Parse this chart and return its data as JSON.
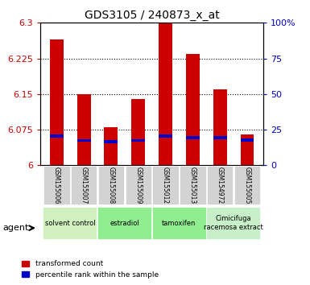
{
  "title": "GDS3105 / 240873_x_at",
  "samples": [
    "GSM155006",
    "GSM155007",
    "GSM155008",
    "GSM155009",
    "GSM155012",
    "GSM155013",
    "GSM154972",
    "GSM155005"
  ],
  "red_values": [
    6.265,
    6.15,
    6.08,
    6.14,
    6.3,
    6.235,
    6.16,
    6.065
  ],
  "blue_values": [
    6.062,
    6.052,
    6.05,
    6.052,
    6.062,
    6.058,
    6.058,
    6.053
  ],
  "ymin": 6.0,
  "ymax": 6.3,
  "yticks": [
    6.0,
    6.075,
    6.15,
    6.225,
    6.3
  ],
  "ytick_labels": [
    "6",
    "6.075",
    "6.15",
    "6.225",
    "6.3"
  ],
  "right_yticks": [
    0,
    25,
    50,
    75,
    100
  ],
  "right_ytick_labels": [
    "0",
    "25",
    "50",
    "75",
    "100%"
  ],
  "groups": [
    {
      "label": "solvent control",
      "start": 0,
      "end": 2,
      "color": "#d0f0c0"
    },
    {
      "label": "estradiol",
      "start": 2,
      "end": 4,
      "color": "#90ee90"
    },
    {
      "label": "tamoxifen",
      "start": 4,
      "end": 6,
      "color": "#90ee90"
    },
    {
      "label": "Cimicifuga\nracemosa extract",
      "start": 6,
      "end": 8,
      "color": "#c8f0c8"
    }
  ],
  "bar_width": 0.5,
  "red_color": "#cc0000",
  "blue_color": "#0000cc",
  "background_color": "#ffffff",
  "plot_bg_color": "#ffffff",
  "tick_label_color_left": "#cc0000",
  "tick_label_color_right": "#0000cc"
}
